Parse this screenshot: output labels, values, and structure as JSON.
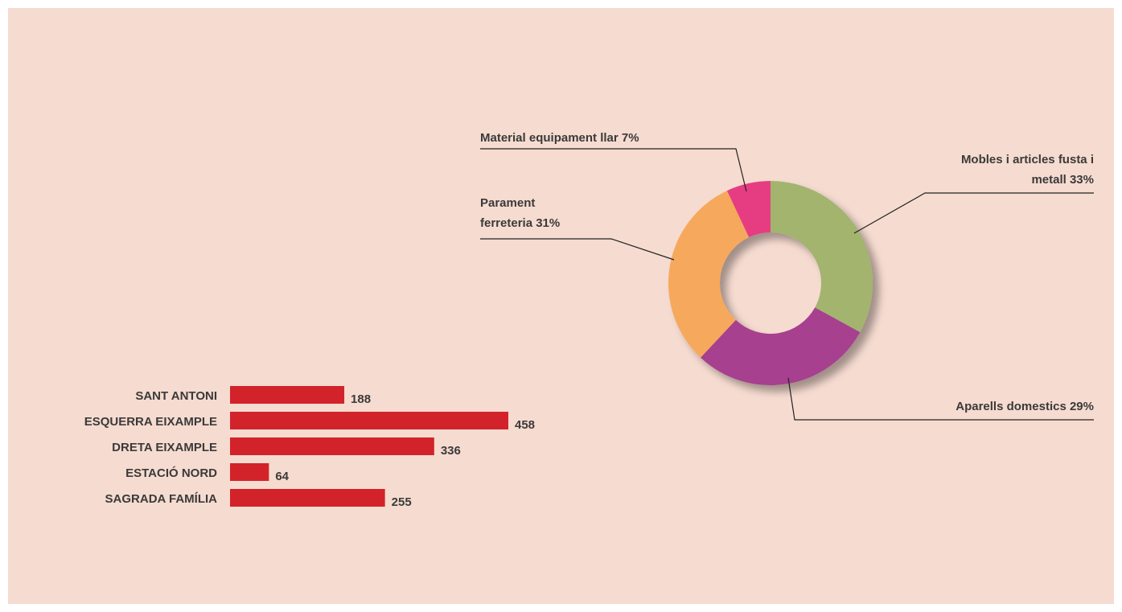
{
  "chart_data": [
    {
      "type": "donut",
      "categories": [
        "Mobles i articles fusta i metall",
        "Aparells domestics",
        "Parament ferreteria",
        "Material equipament llar"
      ],
      "values": [
        33,
        29,
        31,
        7
      ],
      "value_labels": [
        "33%",
        "29%",
        "31%",
        "7%"
      ],
      "colors": [
        "#a2b46e",
        "#a6408f",
        "#f6a95b",
        "#e63d82"
      ]
    },
    {
      "type": "hbar",
      "categories": [
        "SANT ANTONI",
        "ESQUERRA EIXAMPLE",
        "DRETA EIXAMPLE",
        "ESTACIÓ NORD",
        "SAGRADA FAMÍLIA"
      ],
      "values": [
        188,
        458,
        336,
        64,
        255
      ],
      "color": "#d2232a"
    }
  ]
}
